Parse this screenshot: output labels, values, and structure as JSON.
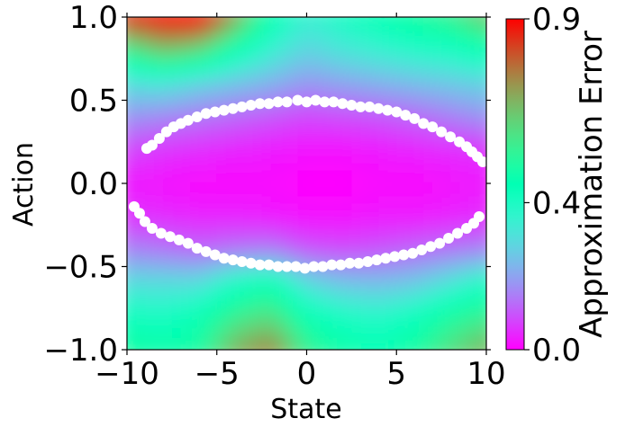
{
  "chart_data": {
    "type": "heatmap",
    "title": "",
    "xlabel": "State",
    "ylabel": "Action",
    "xlim": [
      -10,
      10
    ],
    "ylim": [
      -1.0,
      1.0
    ],
    "xticks": [
      -10,
      -5,
      0,
      5,
      10
    ],
    "xtick_labels": [
      "−10",
      "−5",
      "0",
      "5",
      "10"
    ],
    "yticks": [
      1.0,
      0.5,
      0.0,
      -0.5,
      -1.0
    ],
    "ytick_labels": [
      "1.0",
      "0.5",
      "0.0",
      "−0.5",
      "−1.0"
    ],
    "colorbar": {
      "label": "Approximation Error",
      "range": [
        0.0,
        0.9
      ],
      "ticks": [
        0.0,
        0.4,
        0.9
      ],
      "tick_labels": [
        "0.0",
        "0.4",
        "0.9"
      ],
      "colormap": "rainbow"
    },
    "heatmap": {
      "x": [
        -10,
        -8,
        -6,
        -4,
        -2,
        0,
        2,
        4,
        6,
        8,
        10
      ],
      "y": [
        1.0,
        0.8,
        0.6,
        0.4,
        0.2,
        0.0,
        -0.2,
        -0.4,
        -0.6,
        -0.8,
        -1.0
      ],
      "z": [
        [
          0.85,
          0.9,
          0.92,
          0.7,
          0.45,
          0.35,
          0.4,
          0.45,
          0.5,
          0.55,
          0.65
        ],
        [
          0.55,
          0.65,
          0.6,
          0.45,
          0.35,
          0.28,
          0.32,
          0.35,
          0.38,
          0.4,
          0.45
        ],
        [
          0.3,
          0.32,
          0.28,
          0.25,
          0.22,
          0.18,
          0.2,
          0.22,
          0.24,
          0.26,
          0.28
        ],
        [
          0.18,
          0.16,
          0.14,
          0.12,
          0.1,
          0.08,
          0.09,
          0.1,
          0.12,
          0.15,
          0.18
        ],
        [
          0.08,
          0.06,
          0.05,
          0.04,
          0.03,
          0.02,
          0.02,
          0.03,
          0.04,
          0.05,
          0.06
        ],
        [
          0.03,
          0.02,
          0.01,
          0.01,
          0.01,
          0.0,
          0.0,
          0.01,
          0.01,
          0.02,
          0.03
        ],
        [
          0.06,
          0.05,
          0.04,
          0.04,
          0.03,
          0.02,
          0.02,
          0.03,
          0.03,
          0.04,
          0.05
        ],
        [
          0.16,
          0.14,
          0.12,
          0.14,
          0.15,
          0.1,
          0.09,
          0.1,
          0.12,
          0.14,
          0.16
        ],
        [
          0.3,
          0.3,
          0.3,
          0.4,
          0.45,
          0.3,
          0.25,
          0.24,
          0.26,
          0.32,
          0.4
        ],
        [
          0.42,
          0.4,
          0.45,
          0.55,
          0.6,
          0.45,
          0.4,
          0.38,
          0.42,
          0.5,
          0.55
        ],
        [
          0.5,
          0.48,
          0.5,
          0.68,
          0.75,
          0.55,
          0.48,
          0.45,
          0.5,
          0.6,
          0.68
        ]
      ]
    },
    "series": [
      {
        "type": "scatter",
        "color": "#ffffff",
        "x": [
          -8.9,
          -8.6,
          -8.2,
          -7.8,
          -7.4,
          -7.0,
          -6.6,
          -6.1,
          -5.6,
          -5.1,
          -4.6,
          -4.1,
          -3.6,
          -3.1,
          -2.6,
          -2.1,
          -1.6,
          -1.1,
          -0.5,
          0.0,
          0.5,
          1.0,
          1.5,
          2.0,
          2.5,
          3.0,
          3.5,
          4.0,
          4.5,
          5.0,
          5.5,
          6.0,
          6.5,
          7.0,
          7.5,
          8.0,
          8.5,
          8.9,
          9.2,
          9.5,
          9.8
        ],
        "y": [
          0.21,
          0.23,
          0.27,
          0.31,
          0.34,
          0.36,
          0.38,
          0.4,
          0.42,
          0.43,
          0.44,
          0.45,
          0.46,
          0.47,
          0.48,
          0.48,
          0.49,
          0.49,
          0.5,
          0.49,
          0.5,
          0.49,
          0.49,
          0.48,
          0.47,
          0.46,
          0.46,
          0.45,
          0.44,
          0.43,
          0.41,
          0.39,
          0.36,
          0.34,
          0.31,
          0.28,
          0.25,
          0.22,
          0.19,
          0.16,
          0.13
        ]
      },
      {
        "type": "scatter",
        "color": "#ffffff",
        "x": [
          -9.6,
          -9.3,
          -9.0,
          -8.6,
          -8.1,
          -7.6,
          -7.1,
          -6.6,
          -6.1,
          -5.6,
          -5.1,
          -4.6,
          -4.1,
          -3.6,
          -3.1,
          -2.6,
          -2.1,
          -1.6,
          -1.1,
          -0.6,
          -0.1,
          0.4,
          0.9,
          1.4,
          1.9,
          2.4,
          2.9,
          3.4,
          3.9,
          4.4,
          4.9,
          5.4,
          5.9,
          6.4,
          6.9,
          7.4,
          7.9,
          8.4,
          8.9,
          9.3,
          9.6
        ],
        "y": [
          -0.14,
          -0.18,
          -0.23,
          -0.27,
          -0.3,
          -0.32,
          -0.34,
          -0.36,
          -0.39,
          -0.41,
          -0.43,
          -0.45,
          -0.46,
          -0.47,
          -0.48,
          -0.49,
          -0.49,
          -0.5,
          -0.5,
          -0.5,
          -0.51,
          -0.5,
          -0.5,
          -0.49,
          -0.49,
          -0.48,
          -0.48,
          -0.47,
          -0.46,
          -0.45,
          -0.44,
          -0.43,
          -0.42,
          -0.4,
          -0.38,
          -0.36,
          -0.33,
          -0.3,
          -0.27,
          -0.24,
          -0.2
        ]
      }
    ]
  }
}
